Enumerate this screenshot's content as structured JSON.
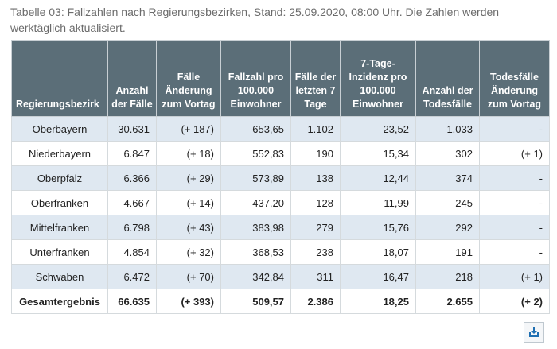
{
  "caption": "Tabelle 03: Fallzahlen nach Regierungsbezirken, Stand: 25.09.2020, 08:00 Uhr. Die Zahlen werden werktäglich aktualisiert.",
  "headers": [
    "Regierungsbezirk",
    "Anzahl der Fälle",
    "Fälle Änderung zum Vortag",
    "Fallzahl pro 100.000 Einwohner",
    "Fälle der letzten 7 Tage",
    "7-Tage-Inzidenz pro 100.000 Einwohner",
    "Anzahl der Todesfälle",
    "Todesfälle Änderung zum Vortag"
  ],
  "rows": [
    [
      "Oberbayern",
      "30.631",
      "(+ 187)",
      "653,65",
      "1.102",
      "23,52",
      "1.033",
      "-"
    ],
    [
      "Niederbayern",
      "6.847",
      "(+ 18)",
      "552,83",
      "190",
      "15,34",
      "302",
      "(+ 1)"
    ],
    [
      "Oberpfalz",
      "6.366",
      "(+ 29)",
      "573,89",
      "138",
      "12,44",
      "374",
      "-"
    ],
    [
      "Oberfranken",
      "4.667",
      "(+ 14)",
      "437,20",
      "128",
      "11,99",
      "245",
      "-"
    ],
    [
      "Mittelfranken",
      "6.798",
      "(+ 43)",
      "383,98",
      "279",
      "15,76",
      "292",
      "-"
    ],
    [
      "Unterfranken",
      "4.854",
      "(+ 32)",
      "368,53",
      "238",
      "18,07",
      "191",
      "-"
    ],
    [
      "Schwaben",
      "6.472",
      "(+ 70)",
      "342,84",
      "311",
      "16,47",
      "218",
      "(+ 1)"
    ]
  ],
  "total": [
    "Gesamtergebnis",
    "66.635",
    "(+ 393)",
    "509,57",
    "2.386",
    "18,25",
    "2.655",
    "(+ 2)"
  ],
  "icons": {
    "download": "download-icon"
  },
  "colors": {
    "header_bg": "#5b6e78",
    "stripe": "#dfe8f1",
    "accent": "#1f6fb2"
  }
}
